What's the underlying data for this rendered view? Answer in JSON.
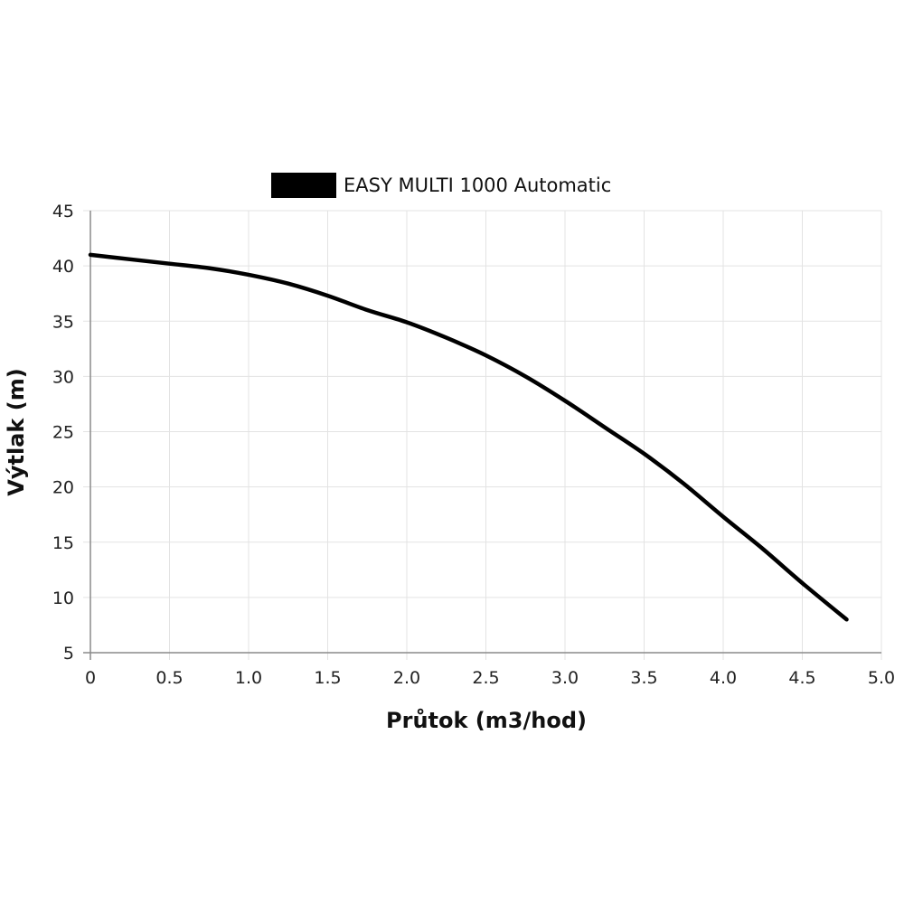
{
  "chart_data": {
    "type": "line",
    "title": "",
    "xlabel": "Průtok (m3/hod)",
    "ylabel": "Výtlak (m)",
    "xlim": [
      0,
      5.0
    ],
    "ylim": [
      5,
      45
    ],
    "x_ticks": [
      "0",
      "0.5",
      "1.0",
      "1.5",
      "2.0",
      "2.5",
      "3.0",
      "3.5",
      "4.0",
      "4.5",
      "5.0"
    ],
    "y_ticks": [
      "5",
      "10",
      "15",
      "20",
      "25",
      "30",
      "35",
      "40",
      "45"
    ],
    "grid": true,
    "legend_position": "top-center",
    "series": [
      {
        "name": "EASY MULTI 1000 Automatic",
        "color": "#000000",
        "x": [
          0,
          0.25,
          0.5,
          0.75,
          1.0,
          1.25,
          1.5,
          1.75,
          2.0,
          2.25,
          2.5,
          2.75,
          3.0,
          3.25,
          3.5,
          3.75,
          4.0,
          4.25,
          4.5,
          4.78
        ],
        "y": [
          41.0,
          40.6,
          40.2,
          39.8,
          39.2,
          38.4,
          37.3,
          36.0,
          34.9,
          33.5,
          31.9,
          30.0,
          27.8,
          25.4,
          23.0,
          20.3,
          17.3,
          14.4,
          11.3,
          8.0
        ]
      }
    ]
  }
}
